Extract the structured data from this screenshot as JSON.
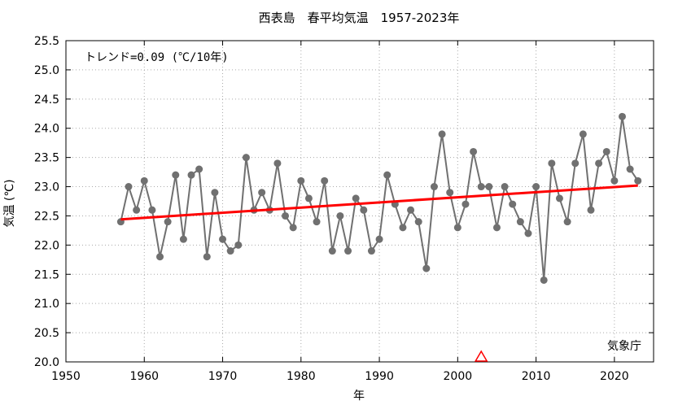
{
  "chart_data": {
    "type": "line",
    "title": "西表島　春平均気温　1957-2023年",
    "xlabel": "年",
    "ylabel": "気温 (℃)",
    "trend_label": "トレンド=0.09 (℃/10年)",
    "source_label": "気象庁",
    "xlim": [
      1950,
      2025
    ],
    "ylim": [
      20.0,
      25.5
    ],
    "x_ticks": [
      1950,
      1960,
      1970,
      1980,
      1990,
      2000,
      2010,
      2020
    ],
    "y_ticks": [
      "20.0",
      "20.5",
      "21.0",
      "21.5",
      "22.0",
      "22.5",
      "23.0",
      "23.5",
      "24.0",
      "24.5",
      "25.0",
      "25.5"
    ],
    "grid": true,
    "series_color": "#707070",
    "trend_color": "#ff0000",
    "marker_color": "#ff0000",
    "x": [
      1957,
      1958,
      1959,
      1960,
      1961,
      1962,
      1963,
      1964,
      1965,
      1966,
      1967,
      1968,
      1969,
      1970,
      1971,
      1972,
      1973,
      1974,
      1975,
      1976,
      1977,
      1978,
      1979,
      1980,
      1981,
      1982,
      1983,
      1984,
      1985,
      1986,
      1987,
      1988,
      1989,
      1990,
      1991,
      1992,
      1993,
      1994,
      1995,
      1996,
      1997,
      1998,
      1999,
      2000,
      2001,
      2002,
      2003,
      2004,
      2005,
      2006,
      2007,
      2008,
      2009,
      2010,
      2011,
      2012,
      2013,
      2014,
      2015,
      2016,
      2017,
      2018,
      2019,
      2020,
      2021,
      2022,
      2023
    ],
    "values": [
      22.4,
      23.0,
      22.6,
      23.1,
      22.6,
      21.8,
      22.4,
      23.2,
      22.1,
      23.2,
      23.3,
      21.8,
      22.9,
      22.1,
      21.9,
      22.0,
      23.5,
      22.6,
      22.9,
      22.6,
      23.4,
      22.5,
      22.3,
      23.1,
      22.8,
      22.4,
      23.1,
      21.9,
      22.5,
      21.9,
      22.8,
      22.6,
      21.9,
      22.1,
      23.2,
      22.7,
      22.3,
      22.6,
      22.4,
      21.6,
      23.0,
      23.9,
      22.9,
      22.3,
      22.7,
      23.6,
      23.0,
      23.0,
      22.3,
      23.0,
      22.7,
      22.4,
      22.2,
      23.0,
      21.4,
      23.4,
      22.8,
      22.4,
      23.4,
      23.9,
      22.6,
      23.4,
      23.6,
      23.1,
      24.2,
      23.3,
      23.1
    ],
    "trend": {
      "x": [
        1957,
        2023
      ],
      "y": [
        22.44,
        23.02
      ]
    },
    "marker_x": 2003,
    "marker_y": 20.0
  }
}
